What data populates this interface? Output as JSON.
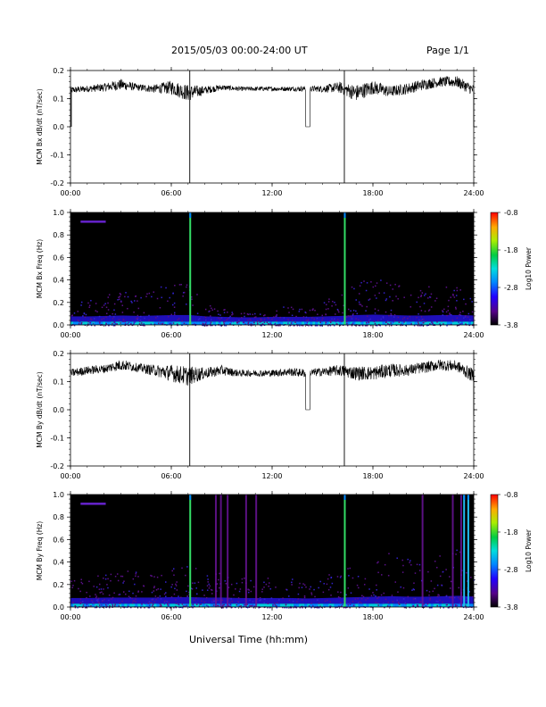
{
  "header": {
    "title": "2015/05/03  00:00-24:00 UT",
    "page": "Page 1/1"
  },
  "footer": {
    "xlabel": "Universal Time (hh:mm)"
  },
  "chart_data": [
    {
      "type": "line",
      "ylabel": "MCM Bx dB/dt (nT/sec)",
      "ylim": [
        -0.2,
        0.2
      ],
      "yticks": [
        "-0.2",
        "-0.1",
        "0.0",
        "0.1",
        "0.2"
      ],
      "xlim_hours": [
        0,
        24
      ],
      "xticks": [
        "00:00",
        "06:00",
        "12:00",
        "18:00",
        "24:00"
      ],
      "baseline_hours": [
        0,
        1,
        2,
        3,
        4,
        5,
        6,
        7,
        8,
        9,
        10,
        11,
        12,
        13,
        14,
        15,
        16,
        17,
        18,
        19,
        20,
        21,
        22,
        23,
        24
      ],
      "baseline_values": [
        0.13,
        0.135,
        0.14,
        0.15,
        0.14,
        0.135,
        0.14,
        0.12,
        0.13,
        0.14,
        0.135,
        0.135,
        0.135,
        0.135,
        0.135,
        0.135,
        0.14,
        0.12,
        0.14,
        0.125,
        0.135,
        0.15,
        0.16,
        0.16,
        0.13
      ],
      "noise_amplitude": [
        0.012,
        0.012,
        0.015,
        0.02,
        0.012,
        0.015,
        0.025,
        0.03,
        0.015,
        0.01,
        0.008,
        0.008,
        0.008,
        0.008,
        0.01,
        0.012,
        0.02,
        0.03,
        0.025,
        0.02,
        0.02,
        0.02,
        0.018,
        0.02,
        0.02
      ],
      "spikes": [
        {
          "hour": 7.1,
          "min": -0.2
        },
        {
          "hour": 16.3,
          "min": -0.2
        }
      ],
      "gaps": [
        {
          "start": 14.0,
          "end": 14.25,
          "value": 0.0
        }
      ],
      "dropouts": [
        {
          "hour": 0.05,
          "value": 0.0
        },
        {
          "hour": 24.0,
          "value": 0.0
        }
      ]
    },
    {
      "type": "heatmap",
      "ylabel": "MCM Bx Freq (Hz)",
      "ylim": [
        0,
        1.0
      ],
      "yticks": [
        "0.0",
        "0.2",
        "0.4",
        "0.6",
        "0.8",
        "1.0"
      ],
      "xlim_hours": [
        0,
        24
      ],
      "xticks": [
        "00:00",
        "06:00",
        "12:00",
        "18:00",
        "24:00"
      ],
      "colorbar": {
        "label": "Log10 Power",
        "ticks": [
          "-0.8",
          "-1.8",
          "-2.8",
          "-3.8"
        ],
        "range": [
          -3.8,
          -0.8
        ]
      },
      "activity_hours": [
        0,
        1,
        2,
        3,
        4,
        5,
        6,
        7,
        8,
        9,
        10,
        11,
        12,
        13,
        14,
        15,
        16,
        17,
        18,
        19,
        20,
        21,
        22,
        23,
        24
      ],
      "activity_level": [
        0.2,
        0.2,
        0.25,
        0.3,
        0.25,
        0.3,
        0.35,
        0.35,
        0.2,
        0.15,
        0.1,
        0.1,
        0.15,
        0.15,
        0.15,
        0.2,
        0.25,
        0.35,
        0.4,
        0.35,
        0.3,
        0.3,
        0.35,
        0.35,
        0.3
      ],
      "bright_lines": [
        {
          "hour": 7.1,
          "color": "#33dd66"
        },
        {
          "hour": 16.3,
          "color": "#33dd66"
        }
      ],
      "top_marker": {
        "hour_start": 0.6,
        "hour_end": 2.1,
        "freq": 0.92
      }
    },
    {
      "type": "line",
      "ylabel": "MCM By dB/dt (nT/sec)",
      "ylim": [
        -0.2,
        0.2
      ],
      "yticks": [
        "-0.2",
        "-0.1",
        "0.0",
        "0.1",
        "0.2"
      ],
      "xlim_hours": [
        0,
        24
      ],
      "xticks": [
        "00:00",
        "06:00",
        "12:00",
        "18:00",
        "24:00"
      ],
      "baseline_hours": [
        0,
        1,
        2,
        3,
        4,
        5,
        6,
        7,
        8,
        9,
        10,
        11,
        12,
        13,
        14,
        15,
        16,
        17,
        18,
        19,
        20,
        21,
        22,
        23,
        24
      ],
      "baseline_values": [
        0.13,
        0.14,
        0.145,
        0.16,
        0.15,
        0.14,
        0.13,
        0.12,
        0.13,
        0.14,
        0.13,
        0.13,
        0.13,
        0.135,
        0.13,
        0.135,
        0.14,
        0.13,
        0.13,
        0.14,
        0.14,
        0.15,
        0.16,
        0.155,
        0.12
      ],
      "noise_amplitude": [
        0.015,
        0.015,
        0.015,
        0.02,
        0.015,
        0.02,
        0.03,
        0.035,
        0.02,
        0.018,
        0.012,
        0.012,
        0.012,
        0.015,
        0.015,
        0.015,
        0.02,
        0.025,
        0.025,
        0.025,
        0.02,
        0.02,
        0.02,
        0.02,
        0.025
      ],
      "spikes": [
        {
          "hour": 7.1,
          "min": -0.2
        },
        {
          "hour": 16.3,
          "min": -0.2
        }
      ],
      "gaps": [
        {
          "start": 14.0,
          "end": 14.25,
          "value": 0.0
        }
      ],
      "dropouts": [
        {
          "hour": 24.0,
          "value": -0.02
        }
      ]
    },
    {
      "type": "heatmap",
      "ylabel": "MCM By Freq (Hz)",
      "ylim": [
        0,
        1.0
      ],
      "yticks": [
        "0.0",
        "0.2",
        "0.4",
        "0.6",
        "0.8",
        "1.0"
      ],
      "xlim_hours": [
        0,
        24
      ],
      "xticks": [
        "00:00",
        "06:00",
        "12:00",
        "18:00",
        "24:00"
      ],
      "colorbar": {
        "label": "Log10 Power",
        "ticks": [
          "-0.8",
          "-1.8",
          "-2.8",
          "-3.8"
        ],
        "range": [
          -3.8,
          -0.8
        ]
      },
      "activity_hours": [
        0,
        1,
        2,
        3,
        4,
        5,
        6,
        7,
        8,
        9,
        10,
        11,
        12,
        13,
        14,
        15,
        16,
        17,
        18,
        19,
        20,
        21,
        22,
        23,
        24
      ],
      "activity_level": [
        0.25,
        0.25,
        0.3,
        0.3,
        0.3,
        0.3,
        0.35,
        0.35,
        0.3,
        0.3,
        0.25,
        0.25,
        0.25,
        0.25,
        0.2,
        0.25,
        0.3,
        0.35,
        0.4,
        0.45,
        0.4,
        0.4,
        0.45,
        0.5,
        0.4
      ],
      "bright_lines": [
        {
          "hour": 7.1,
          "color": "#33dd66"
        },
        {
          "hour": 16.3,
          "color": "#33dd66"
        },
        {
          "hour": 23.4,
          "color": "#22bbee"
        },
        {
          "hour": 23.65,
          "color": "#22bbee"
        }
      ],
      "purple_lines": [
        8.6,
        8.9,
        9.3,
        10.4,
        11.0,
        20.9,
        22.7,
        23.2
      ],
      "top_marker": {
        "hour_start": 0.6,
        "hour_end": 2.1,
        "freq": 0.92
      }
    }
  ]
}
